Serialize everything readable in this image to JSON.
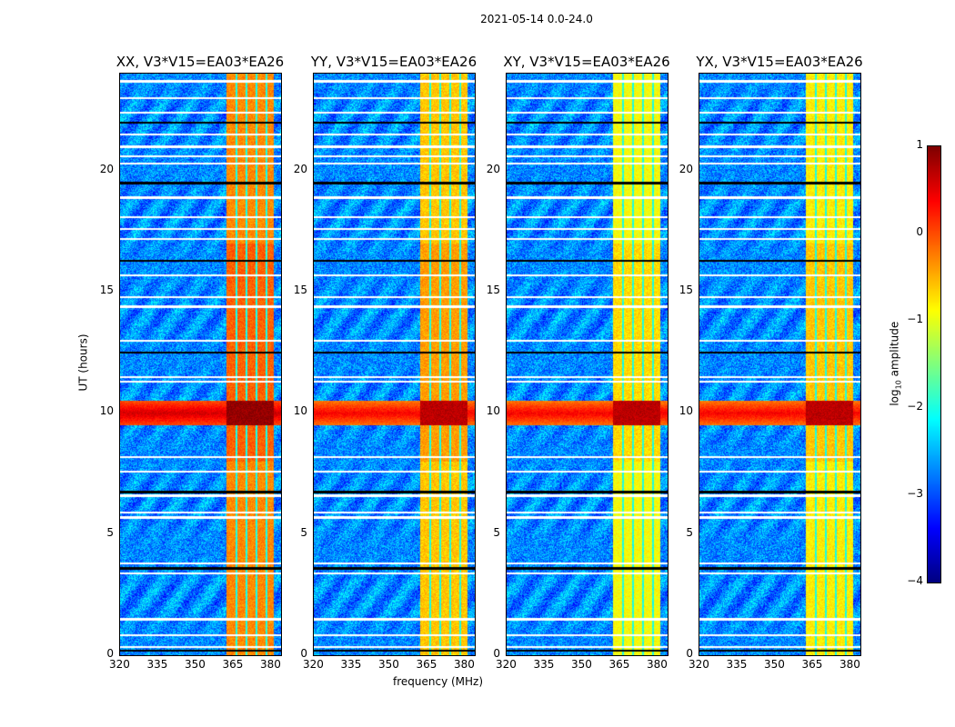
{
  "chart_data": {
    "type": "heatmap",
    "title": "2021-05-14 0.0-24.0",
    "xlabel": "frequency (MHz)",
    "ylabel": "UT (hours)",
    "xlim": [
      320,
      384
    ],
    "ylim": [
      0,
      24
    ],
    "xticks": [
      320,
      335,
      350,
      365,
      380
    ],
    "yticks": [
      0,
      5,
      10,
      15,
      20
    ],
    "panels": [
      {
        "title": "XX, V3*V15=EA03*EA26",
        "band_level": -0.3,
        "rfi_line_level": 0.6
      },
      {
        "title": "YY, V3*V15=EA03*EA26",
        "band_level": -0.6,
        "rfi_line_level": 0.4
      },
      {
        "title": "XY, V3*V15=EA03*EA26",
        "band_level": -0.9,
        "rfi_line_level": 0.4
      },
      {
        "title": "YX, V3*V15=EA03*EA26",
        "band_level": -0.8,
        "rfi_line_level": 0.4
      }
    ],
    "rfi_band_mhz": [
      362,
      381
    ],
    "rfi_time_hours": [
      9.5,
      10.5
    ],
    "background_level": -2.7,
    "flagged_hours": [
      0.2,
      0.35,
      0.85,
      1.5,
      3.4,
      3.6,
      3.8,
      5.7,
      5.9,
      6.6,
      6.75,
      7.6,
      8.2,
      11.3,
      11.5,
      12.5,
      13.0,
      14.4,
      14.8,
      15.7,
      16.3,
      17.2,
      17.6,
      18.1,
      18.9,
      19.5,
      20.3,
      20.6,
      21.0,
      21.5,
      22.0,
      22.4,
      23.0,
      23.7
    ],
    "colorbar": {
      "label_prefix": "log",
      "label_sub": "10",
      "label_suffix": " amplitude",
      "range": [
        -4,
        1
      ],
      "ticks": [
        1,
        0,
        -1,
        -2,
        -3,
        -4
      ],
      "colormap": "jet"
    }
  }
}
